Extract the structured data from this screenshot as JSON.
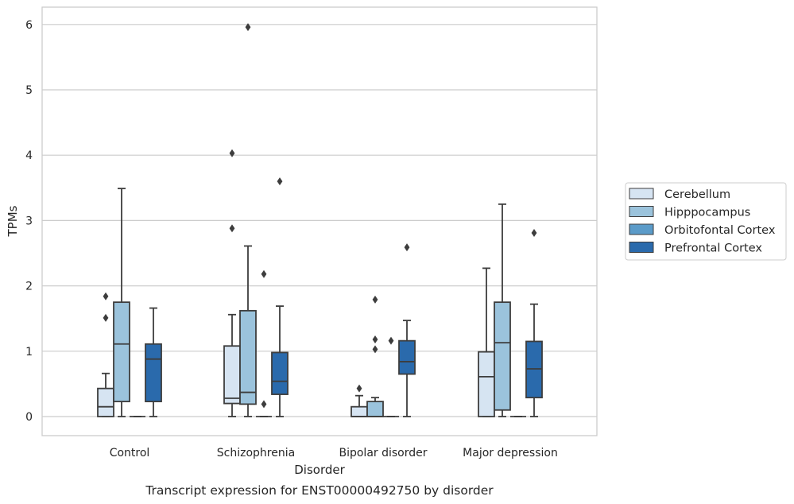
{
  "chart_data": {
    "type": "box",
    "title": "",
    "caption": "Transcript expression for ENST00000492750 by disorder",
    "xlabel": "Disorder",
    "ylabel": "TPMs",
    "ylim": [
      -0.3,
      6.27
    ],
    "yticks": [
      0,
      1,
      2,
      3,
      4,
      5,
      6
    ],
    "grid": "horizontal",
    "legend_position": "right",
    "categories": [
      "Control",
      "Schizophrenia",
      "Bipolar disorder",
      "Major depression"
    ],
    "series": [
      {
        "name": "Cerebellum",
        "color": "#d6e4f2",
        "boxes": [
          {
            "whislo": 0,
            "q1": 0,
            "med": 0.15,
            "q3": 0.43,
            "whishi": 0.66,
            "fliers": [
              1.51,
              1.84
            ]
          },
          {
            "whislo": 0,
            "q1": 0.2,
            "med": 0.28,
            "q3": 1.08,
            "whishi": 1.56,
            "fliers": [
              2.88,
              4.03
            ]
          },
          {
            "whislo": 0,
            "q1": 0,
            "med": 0,
            "q3": 0.15,
            "whishi": 0.32,
            "fliers": [
              0.43
            ]
          },
          {
            "whislo": 0,
            "q1": 0,
            "med": 0.61,
            "q3": 0.99,
            "whishi": 2.27,
            "fliers": []
          }
        ]
      },
      {
        "name": "Hipppocampus",
        "color": "#9bc3dc",
        "boxes": [
          {
            "whislo": 0,
            "q1": 0.23,
            "med": 1.11,
            "q3": 1.75,
            "whishi": 3.49,
            "fliers": []
          },
          {
            "whislo": 0,
            "q1": 0.19,
            "med": 0.37,
            "q3": 1.62,
            "whishi": 2.61,
            "fliers": [
              5.96
            ]
          },
          {
            "whislo": 0,
            "q1": 0,
            "med": 0,
            "q3": 0.23,
            "whishi": 0.29,
            "fliers": [
              1.03,
              1.18,
              1.79
            ]
          },
          {
            "whislo": 0,
            "q1": 0.1,
            "med": 1.13,
            "q3": 1.75,
            "whishi": 3.25,
            "fliers": []
          }
        ]
      },
      {
        "name": "Orbitofontal Cortex",
        "color": "#5b9bc9",
        "boxes": [
          {
            "whislo": 0,
            "q1": 0,
            "med": 0,
            "q3": 0,
            "whishi": 0,
            "fliers": []
          },
          {
            "whislo": 0,
            "q1": 0,
            "med": 0,
            "q3": 0,
            "whishi": 0,
            "fliers": [
              0.19,
              2.18
            ]
          },
          {
            "whislo": 0,
            "q1": 0,
            "med": 0,
            "q3": 0,
            "whishi": 0,
            "fliers": [
              1.16
            ]
          },
          {
            "whislo": 0,
            "q1": 0,
            "med": 0,
            "q3": 0,
            "whishi": 0,
            "fliers": []
          }
        ]
      },
      {
        "name": "Prefrontal Cortex",
        "color": "#2a6aac",
        "boxes": [
          {
            "whislo": 0,
            "q1": 0.23,
            "med": 0.88,
            "q3": 1.11,
            "whishi": 1.66,
            "fliers": []
          },
          {
            "whislo": 0,
            "q1": 0.34,
            "med": 0.54,
            "q3": 0.98,
            "whishi": 1.69,
            "fliers": [
              3.6
            ]
          },
          {
            "whislo": 0,
            "q1": 0.65,
            "med": 0.84,
            "q3": 1.16,
            "whishi": 1.47,
            "fliers": [
              2.59
            ]
          },
          {
            "whislo": 0,
            "q1": 0.29,
            "med": 0.73,
            "q3": 1.15,
            "whishi": 1.72,
            "fliers": [
              2.81
            ]
          }
        ]
      }
    ]
  }
}
